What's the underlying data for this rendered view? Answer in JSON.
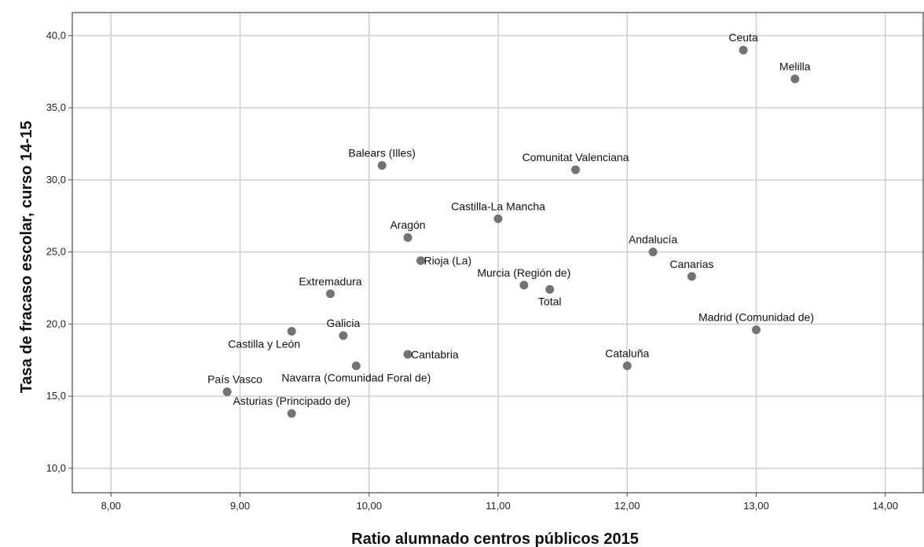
{
  "chart_data": {
    "type": "scatter",
    "title": "",
    "xlabel": "Ratio alumnado centros públicos 2015",
    "ylabel": "Tasa de fracaso escolar, curso 14-15",
    "xlim": [
      7.7,
      14.3
    ],
    "ylim": [
      8.3,
      41.6
    ],
    "grid": true,
    "x_ticks": [
      {
        "value": 8,
        "label": "8,00"
      },
      {
        "value": 9,
        "label": "9,00"
      },
      {
        "value": 10,
        "label": "10,00"
      },
      {
        "value": 11,
        "label": "11,00"
      },
      {
        "value": 12,
        "label": "12,00"
      },
      {
        "value": 13,
        "label": "13,00"
      },
      {
        "value": 14,
        "label": "14,00"
      }
    ],
    "y_ticks": [
      {
        "value": 10,
        "label": "10,0"
      },
      {
        "value": 15,
        "label": "15,0"
      },
      {
        "value": 20,
        "label": "20,0"
      },
      {
        "value": 25,
        "label": "25,0"
      },
      {
        "value": 30,
        "label": "30,0"
      },
      {
        "value": 35,
        "label": "35,0"
      },
      {
        "value": 40,
        "label": "40,0"
      }
    ],
    "marker_color": "#737373",
    "points": [
      {
        "label": "Ceuta",
        "x": 12.9,
        "y": 39.0,
        "pos": "above"
      },
      {
        "label": "Melilla",
        "x": 13.3,
        "y": 37.0,
        "pos": "above"
      },
      {
        "label": "Balears (Illes)",
        "x": 10.1,
        "y": 31.0,
        "pos": "above"
      },
      {
        "label": "Comunitat Valenciana",
        "x": 11.6,
        "y": 30.7,
        "pos": "above"
      },
      {
        "label": "Castilla-La Mancha",
        "x": 11.0,
        "y": 27.3,
        "pos": "above"
      },
      {
        "label": "Aragón",
        "x": 10.3,
        "y": 26.0,
        "pos": "above"
      },
      {
        "label": "Andalucía",
        "x": 12.2,
        "y": 25.0,
        "pos": "above"
      },
      {
        "label": "Rioja (La)",
        "x": 10.4,
        "y": 24.4,
        "pos": "right"
      },
      {
        "label": "Canarias",
        "x": 12.5,
        "y": 23.3,
        "pos": "above"
      },
      {
        "label": "Murcia (Región de)",
        "x": 11.2,
        "y": 22.7,
        "pos": "above"
      },
      {
        "label": "Total",
        "x": 11.4,
        "y": 22.4,
        "pos": "below"
      },
      {
        "label": "Extremadura",
        "x": 9.7,
        "y": 22.1,
        "pos": "above"
      },
      {
        "label": "Madrid (Comunidad de)",
        "x": 13.0,
        "y": 19.6,
        "pos": "above"
      },
      {
        "label": "Castilla y León",
        "x": 9.4,
        "y": 19.5,
        "pos": "below-left"
      },
      {
        "label": "Galicia",
        "x": 9.8,
        "y": 19.2,
        "pos": "above"
      },
      {
        "label": "Cantabria",
        "x": 10.3,
        "y": 17.9,
        "pos": "right"
      },
      {
        "label": "Cataluña",
        "x": 12.0,
        "y": 17.1,
        "pos": "above"
      },
      {
        "label": "Navarra (Comunidad Foral de)",
        "x": 9.9,
        "y": 17.1,
        "pos": "below"
      },
      {
        "label": "País Vasco",
        "x": 8.9,
        "y": 15.3,
        "pos": "above-left"
      },
      {
        "label": "Asturias (Principado de)",
        "x": 9.4,
        "y": 13.8,
        "pos": "above"
      }
    ]
  }
}
